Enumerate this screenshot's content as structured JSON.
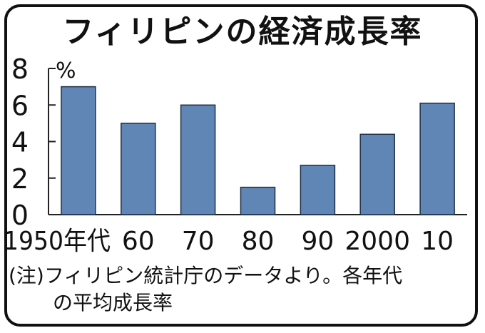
{
  "title": "フィリピンの経済成長率",
  "note": {
    "line1": "(注)フィリピン統計庁のデータより。各年代",
    "line2": "の平均成長率"
  },
  "colors": {
    "bar": "#5f86b4",
    "bar_stroke": "#1f2f45",
    "axis": "#222222",
    "text": "#111111"
  },
  "chart_data": {
    "type": "bar",
    "title": "フィリピンの経済成長率",
    "unit": "%",
    "categories": [
      "1950年代",
      "60",
      "70",
      "80",
      "90",
      "2000",
      "10"
    ],
    "values": [
      7.0,
      5.0,
      6.0,
      1.5,
      2.7,
      4.4,
      6.1
    ],
    "ylim": [
      0,
      8
    ],
    "yticks": [
      0,
      2,
      4,
      6,
      8
    ],
    "grid": false,
    "xlabel": "",
    "ylabel": ""
  }
}
